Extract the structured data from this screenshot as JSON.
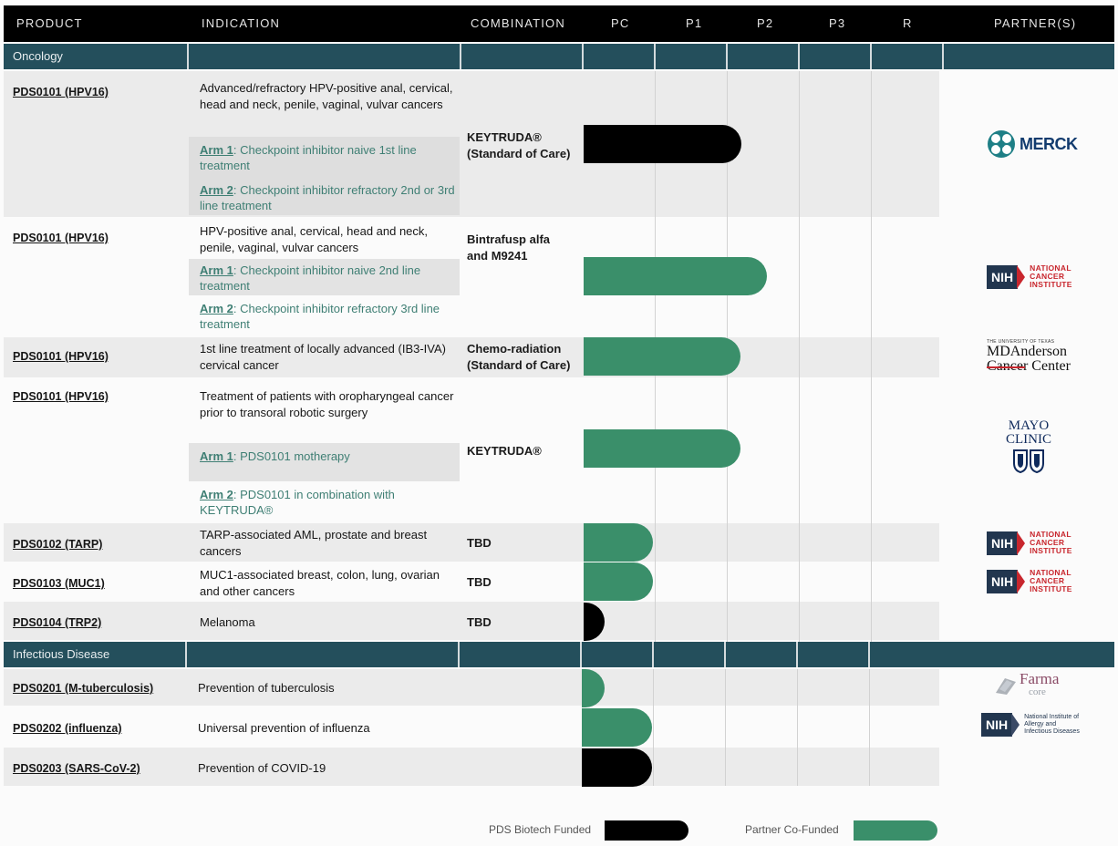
{
  "header": {
    "columns": [
      "PRODUCT",
      "INDICATION",
      "COMBINATION",
      "PC",
      "P1",
      "P2",
      "P3",
      "R",
      "PARTNER(S)"
    ]
  },
  "sections": {
    "oncology": "Oncology",
    "infectious": "Infectious Disease"
  },
  "rows": {
    "r1": {
      "product": "PDS0101 (HPV16)",
      "indication": "Advanced/refractory HPV-positive anal, cervical, head and neck, penile, vaginal, vulvar cancers",
      "arm1_label": "Arm 1",
      "arm1_text": "Checkpoint inhibitor naive 1st line treatment",
      "arm2_label": "Arm 2",
      "arm2_text": "Checkpoint inhibitor refractory 2nd or 3rd line treatment",
      "combination": "KEYTRUDA® (Standard of Care)",
      "partner": "MERCK",
      "bar_funding": "PDS Biotech Funded",
      "bar_stage": "P2"
    },
    "r2": {
      "product": "PDS0101 (HPV16)",
      "indication": "HPV-positive anal, cervical, head and neck, penile, vaginal, vulvar cancers",
      "arm1_label": "Arm 1",
      "arm1_text": "Checkpoint inhibitor naive 2nd line treatment",
      "arm2_label": "Arm 2",
      "arm2_text": "Checkpoint inhibitor refractory 3rd line treatment",
      "combination": "Bintrafusp alfa and M9241",
      "partner": "NIH NATIONAL CANCER INSTITUTE",
      "bar_funding": "Partner Co-Funded",
      "bar_stage": "P2"
    },
    "r3": {
      "product": "PDS0101 (HPV16)",
      "indication": "1st line treatment of locally advanced (IB3-IVA) cervical cancer",
      "combination": "Chemo-radiation (Standard of Care)",
      "partner": "THE UNIVERSITY OF TEXAS MDAnderson Cancer Center",
      "bar_funding": "Partner Co-Funded",
      "bar_stage": "P2"
    },
    "r4": {
      "product": "PDS0101 (HPV16)",
      "indication": "Treatment of patients with oropharyngeal cancer prior to transoral robotic surgery",
      "arm1_label": "Arm 1",
      "arm1_text": "PDS0101 motherapy",
      "arm2_label": "Arm 2",
      "arm2_text": "PDS0101 in combination with KEYTRUDA®",
      "combination": "KEYTRUDA®",
      "partner": "MAYO CLINIC",
      "bar_funding": "Partner Co-Funded",
      "bar_stage": "P2"
    },
    "r5": {
      "product": "PDS0102 (TARP)",
      "indication": "TARP-associated AML, prostate and breast cancers",
      "combination": "TBD",
      "partner": "NIH NATIONAL CANCER INSTITUTE",
      "bar_funding": "Partner Co-Funded",
      "bar_stage": "PC"
    },
    "r6": {
      "product": "PDS0103 (MUC1)",
      "indication": "MUC1-associated breast, colon, lung, ovarian and other cancers",
      "combination": "TBD",
      "partner": "NIH NATIONAL CANCER INSTITUTE",
      "bar_funding": "Partner Co-Funded",
      "bar_stage": "PC"
    },
    "r7": {
      "product": "PDS0104 (TRP2)",
      "indication": "Melanoma",
      "combination": "TBD",
      "bar_funding": "PDS Biotech Funded",
      "bar_stage": "PC"
    },
    "r8": {
      "product": "PDS0201 (M-tuberculosis)",
      "indication": "Prevention of tuberculosis",
      "partner": "Farma core",
      "bar_funding": "Partner Co-Funded",
      "bar_stage": "PC"
    },
    "r9": {
      "product": "PDS0202 (influenza)",
      "indication": "Universal prevention of influenza",
      "partner": "NIH National Institute of Allergy and Infectious Diseases",
      "bar_funding": "Partner Co-Funded",
      "bar_stage": "PC"
    },
    "r10": {
      "product": "PDS0203 (SARS-CoV-2)",
      "indication": "Prevention of COVID-19",
      "bar_funding": "PDS Biotech Funded",
      "bar_stage": "PC"
    }
  },
  "partners": {
    "merck": "MERCK",
    "nih_box": "NIH",
    "nci_l1": "NATIONAL",
    "nci_l2": "CANCER",
    "nci_l3": "INSTITUTE",
    "mda_small": "THE UNIVERSITY OF TEXAS",
    "mda_l1": "MDAnderson",
    "mda_l2": "Cancer Center",
    "mayo_l1": "MAYO",
    "mayo_l2": "CLINIC",
    "farma_l1": "Farma",
    "farma_l2": "core",
    "niaid_l1": "National Institute of",
    "niaid_l2": "Allergy and",
    "niaid_l3": "Infectious Diseases"
  },
  "legend": {
    "pds": "PDS Biotech Funded",
    "partner": "Partner Co-Funded"
  },
  "colors": {
    "header_bg": "#000000",
    "section_bg": "#244f5c",
    "pds_funded": "#000000",
    "partner_funded": "#3a8f6a",
    "arm_text": "#3f7f74"
  }
}
